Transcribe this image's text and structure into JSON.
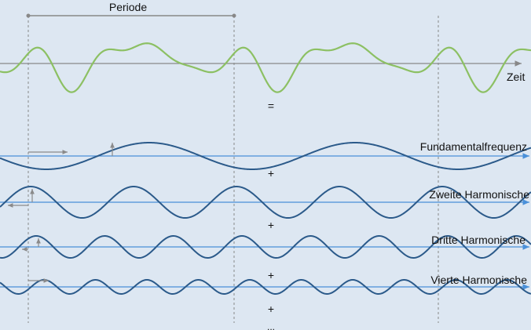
{
  "diagram": {
    "period_label": "Periode",
    "time_axis_label": "Zeit",
    "equals_sign": "=",
    "plus_signs": [
      "+",
      "+",
      "+",
      "+"
    ],
    "ellipsis": "...",
    "harmonics": [
      {
        "name": "Fundamentalfrequenz",
        "order": 1
      },
      {
        "name": "Zweite Harmonische",
        "order": 2
      },
      {
        "name": "Dritte Harmonische",
        "order": 3
      },
      {
        "name": "Vierte Harmonische",
        "order": 4
      }
    ],
    "colors": {
      "background": "#dde7f2",
      "composite_wave": "#8cc063",
      "harmonic_wave": "#2b5a8a",
      "axis_line": "#4a90d9",
      "main_axis": "#888888",
      "phase_arrow": "#8a8a8a",
      "guide_line": "#888888"
    }
  }
}
